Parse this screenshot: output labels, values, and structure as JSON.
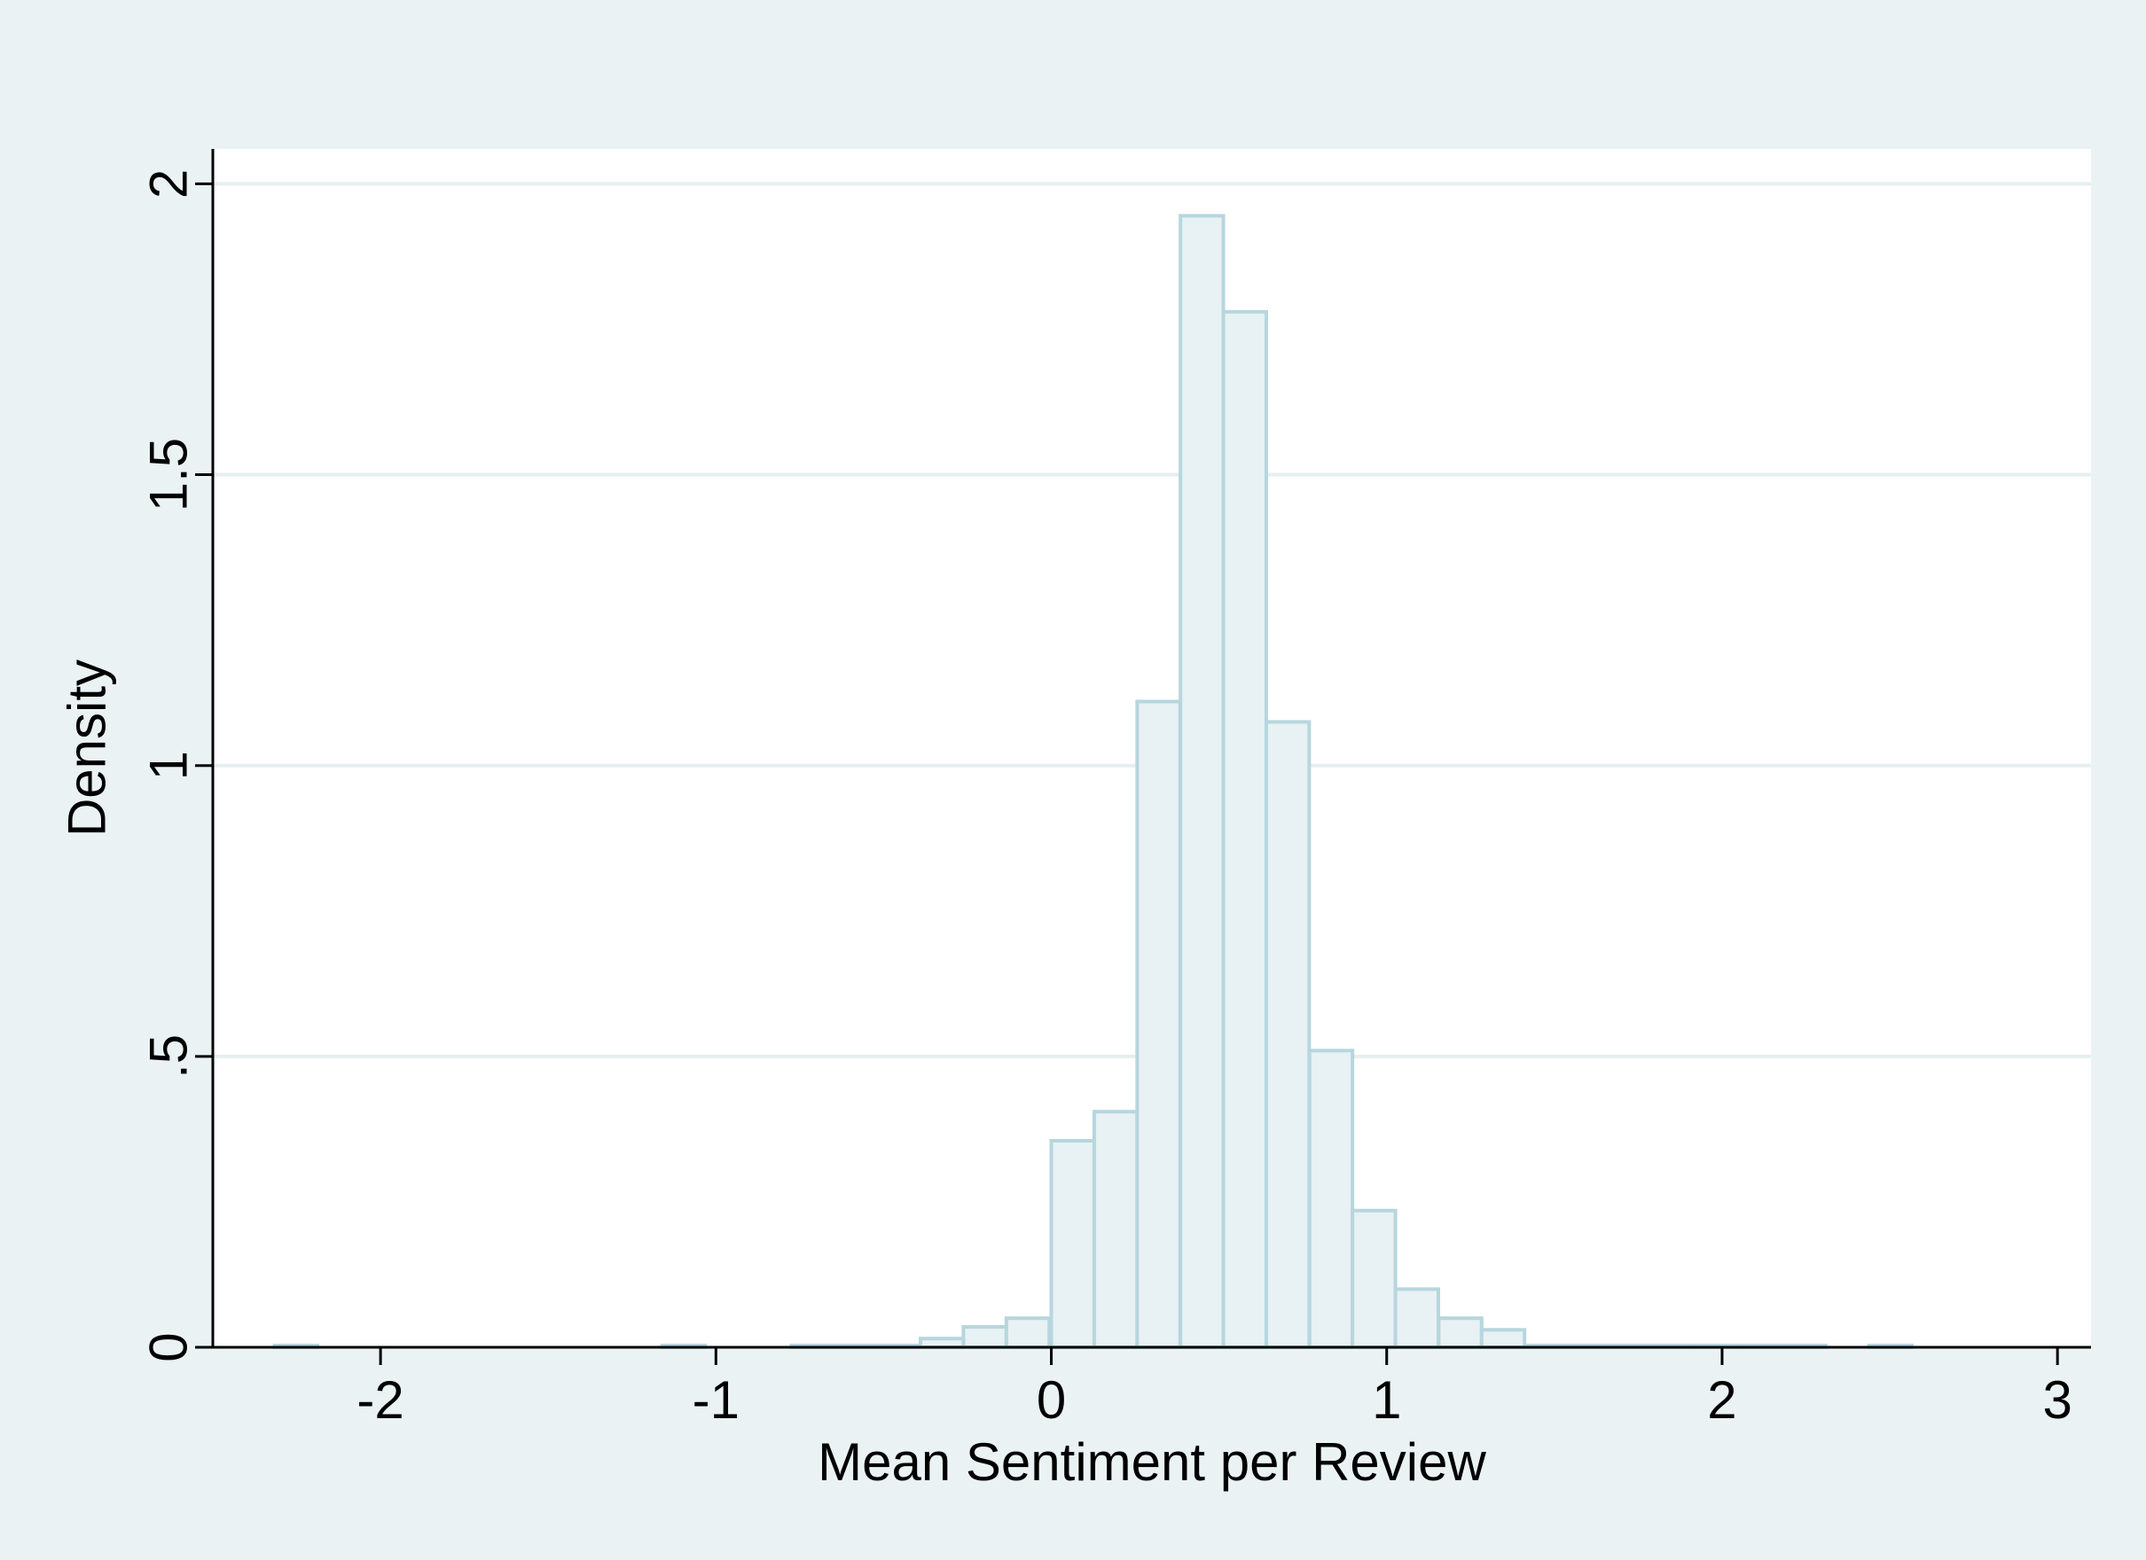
{
  "chart_data": {
    "type": "bar",
    "title": "",
    "xlabel": "Mean Sentiment per Review",
    "ylabel": "Density",
    "xlim": [
      -2.5,
      3.1
    ],
    "ylim": [
      0,
      2.06
    ],
    "xticks": [
      -2,
      -1,
      0,
      1,
      2,
      3
    ],
    "xtick_labels": [
      "-2",
      "-1",
      "0",
      "1",
      "2",
      "3"
    ],
    "yticks": [
      0,
      0.5,
      1,
      1.5,
      2
    ],
    "ytick_labels": [
      "0",
      ".5",
      "1",
      "1.5",
      "2"
    ],
    "grid": "horizontal",
    "bin_width": 0.128,
    "bins": [
      {
        "x0": -2.316,
        "density": 0.003
      },
      {
        "x0": -1.16,
        "density": 0.003
      },
      {
        "x0": -0.775,
        "density": 0.003
      },
      {
        "x0": -0.647,
        "density": 0.003
      },
      {
        "x0": -0.519,
        "density": 0.003
      },
      {
        "x0": -0.39,
        "density": 0.015
      },
      {
        "x0": -0.262,
        "density": 0.035
      },
      {
        "x0": -0.134,
        "density": 0.05
      },
      {
        "x0": 0.0,
        "density": 0.355
      },
      {
        "x0": 0.128,
        "density": 0.405
      },
      {
        "x0": 0.256,
        "density": 1.11
      },
      {
        "x0": 0.385,
        "density": 1.945
      },
      {
        "x0": 0.513,
        "density": 1.78
      },
      {
        "x0": 0.641,
        "density": 1.075
      },
      {
        "x0": 0.77,
        "density": 0.51
      },
      {
        "x0": 0.898,
        "density": 0.235
      },
      {
        "x0": 1.026,
        "density": 0.1
      },
      {
        "x0": 1.155,
        "density": 0.05
      },
      {
        "x0": 1.283,
        "density": 0.03
      },
      {
        "x0": 1.411,
        "density": 0.003
      },
      {
        "x0": 1.54,
        "density": 0.003
      },
      {
        "x0": 1.668,
        "density": 0.003
      },
      {
        "x0": 1.796,
        "density": 0.003
      },
      {
        "x0": 1.925,
        "density": 0.003
      },
      {
        "x0": 2.053,
        "density": 0.003
      },
      {
        "x0": 2.181,
        "density": 0.003
      },
      {
        "x0": 2.438,
        "density": 0.003
      }
    ],
    "colors": {
      "bar_fill": "#e8f1f3",
      "bar_stroke": "#b7d6de",
      "plot_background": "#ffffff",
      "outer_background": "#eaf2f3",
      "grid": "#e6efef",
      "axis": "#000000"
    }
  }
}
